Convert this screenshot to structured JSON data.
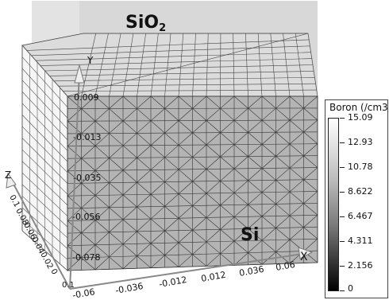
{
  "materials": {
    "top": "SiO",
    "top_subscript": "2",
    "bottom": "Si"
  },
  "axes": {
    "y_name": "Y",
    "z_name": "Z",
    "x_name": "X",
    "y_ticks": [
      "0.009",
      "-0.013",
      "-0.035",
      "-0.056",
      "-0.078"
    ],
    "z_ticks": [
      "0.1",
      "0.08",
      "0.06",
      "0.04",
      "0.02",
      "0"
    ],
    "x_ticks": [
      "-0.06",
      "-0.036",
      "-0.012",
      "0.012",
      "0.036",
      "0.06"
    ],
    "origin": "0.1"
  },
  "legend": {
    "title": "Boron (/cm3)",
    "values": [
      "15.09",
      "12.93",
      "10.78",
      "8.622",
      "6.467",
      "4.311",
      "2.156",
      "0"
    ]
  }
}
